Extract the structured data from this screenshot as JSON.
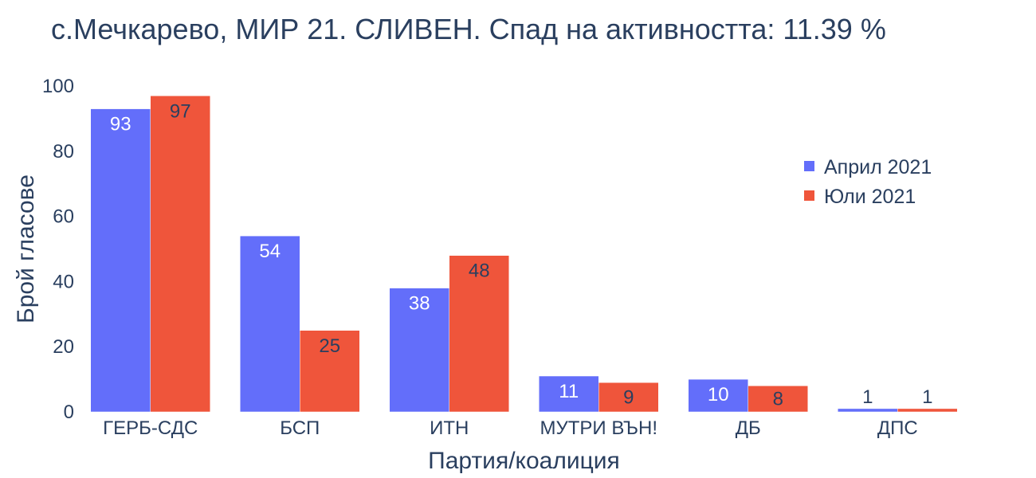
{
  "chart_data": {
    "type": "bar",
    "title": "с.Мечкарево, МИР 21. СЛИВЕН. Спад на активността: 11.39 %",
    "xlabel": "Партия/коалиция",
    "ylabel": "Брой гласове",
    "categories": [
      "ГЕРБ-СДС",
      "БСП",
      "ИТН",
      "МУТРИ ВЪН!",
      "ДБ",
      "ДПС"
    ],
    "ylim": [
      0,
      100
    ],
    "yticks": [
      0,
      20,
      40,
      60,
      80,
      100
    ],
    "grid": false,
    "legend_position": "top-right",
    "series": [
      {
        "name": "Април 2021",
        "color": "#636efa",
        "values": [
          93,
          54,
          38,
          11,
          10,
          1
        ]
      },
      {
        "name": "Юли 2021",
        "color": "#ef553b",
        "values": [
          97,
          25,
          48,
          9,
          8,
          1
        ]
      }
    ]
  }
}
